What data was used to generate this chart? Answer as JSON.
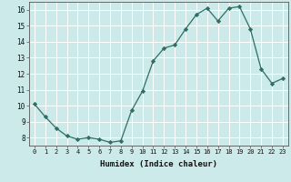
{
  "title": "",
  "xlabel": "Humidex (Indice chaleur)",
  "ylabel": "",
  "x": [
    0,
    1,
    2,
    3,
    4,
    5,
    6,
    7,
    8,
    9,
    10,
    11,
    12,
    13,
    14,
    15,
    16,
    17,
    18,
    19,
    20,
    21,
    22,
    23
  ],
  "y": [
    10.1,
    9.3,
    8.6,
    8.1,
    7.9,
    8.0,
    7.9,
    7.7,
    7.8,
    9.7,
    10.9,
    12.8,
    13.6,
    13.8,
    14.8,
    15.7,
    16.1,
    15.3,
    16.1,
    16.2,
    14.8,
    12.3,
    11.4,
    11.7
  ],
  "line_color": "#2e6e65",
  "marker": "D",
  "marker_size": 2.2,
  "background_color": "#cceaea",
  "grid_color": "#ffffff",
  "xlim": [
    -0.5,
    23.5
  ],
  "ylim": [
    7.5,
    16.5
  ],
  "yticks": [
    8,
    9,
    10,
    11,
    12,
    13,
    14,
    15,
    16
  ],
  "xticks": [
    0,
    1,
    2,
    3,
    4,
    5,
    6,
    7,
    8,
    9,
    10,
    11,
    12,
    13,
    14,
    15,
    16,
    17,
    18,
    19,
    20,
    21,
    22,
    23
  ]
}
